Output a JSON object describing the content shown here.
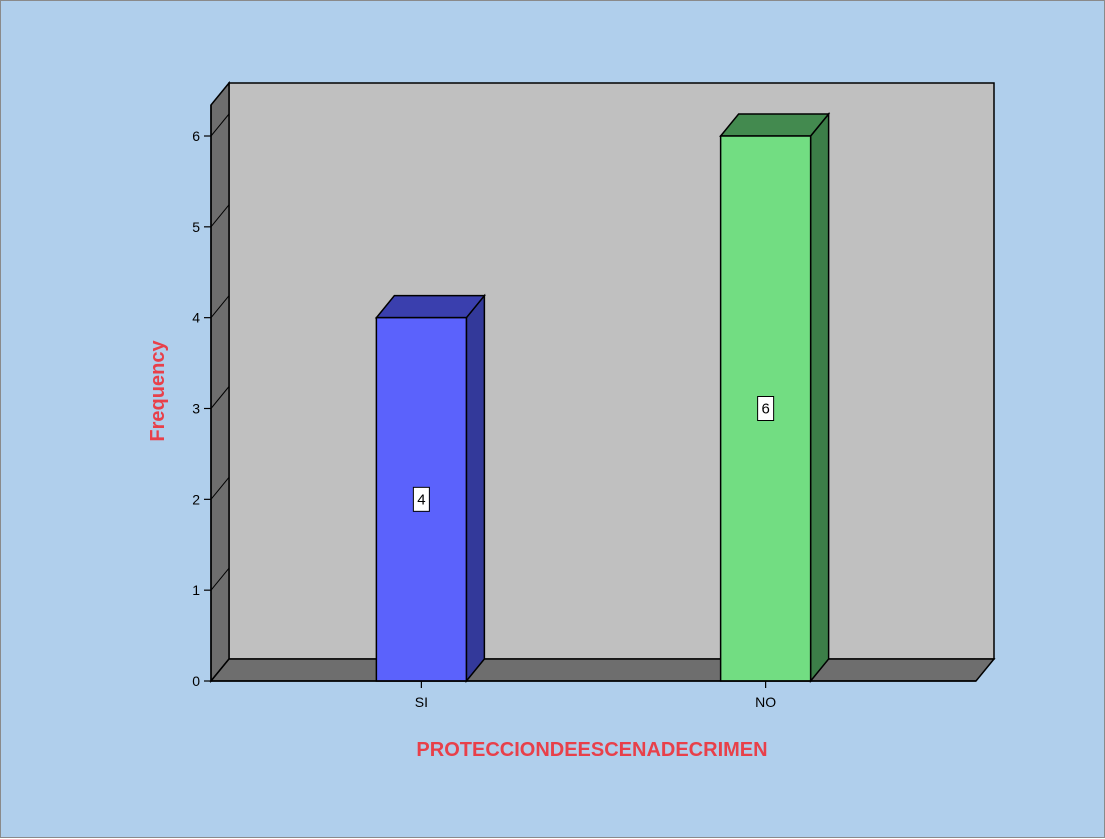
{
  "chart_data": {
    "type": "bar",
    "categories": [
      "SI",
      "NO"
    ],
    "values": [
      4,
      6
    ],
    "data_labels": [
      "4",
      "6"
    ],
    "title": "",
    "xlabel": "PROTECCIONDEESCENADECRIMEN",
    "ylabel": "Frequency",
    "ylim": [
      0,
      6
    ],
    "yticks": [
      "0",
      "1",
      "2",
      "3",
      "4",
      "5",
      "6"
    ],
    "grid": false,
    "style": "3d",
    "colors": {
      "background": "#b0cfec",
      "plot_wall": "#c0c0c0",
      "plot_side": "#6e6e6e",
      "axis_title": "#e8404a",
      "bars": [
        {
          "front": "#5b62fc",
          "top": "#3a3fae",
          "side": "#33399a"
        },
        {
          "front": "#72dd82",
          "top": "#438a4f",
          "side": "#3c7e48"
        }
      ]
    }
  }
}
